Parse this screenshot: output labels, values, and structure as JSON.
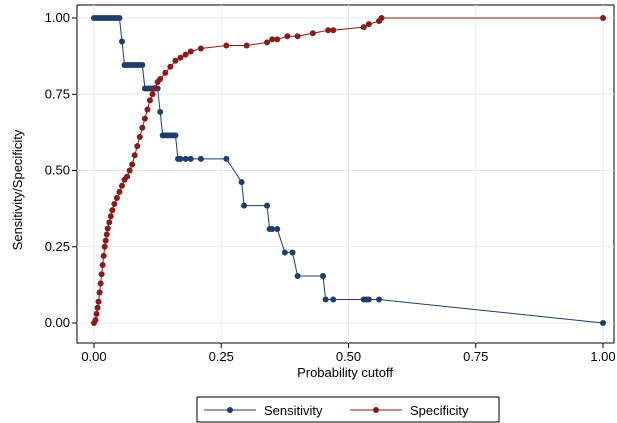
{
  "chart_data": {
    "type": "line",
    "xlabel": "Probability cutoff",
    "ylabel": "Sensitivity/Specificity",
    "xlim": [
      0,
      1
    ],
    "ylim": [
      0,
      1
    ],
    "x_ticks": [
      "0.00",
      "0.25",
      "0.50",
      "0.75",
      "1.00"
    ],
    "y_ticks": [
      "0.00",
      "0.25",
      "0.50",
      "0.75",
      "1.00"
    ],
    "grid": true,
    "legend_position": "bottom",
    "series": [
      {
        "name": "Sensitivity",
        "color": "#1f3d6e",
        "points": [
          [
            0.0,
            1.0
          ],
          [
            0.005,
            1.0
          ],
          [
            0.01,
            1.0
          ],
          [
            0.015,
            1.0
          ],
          [
            0.02,
            1.0
          ],
          [
            0.025,
            1.0
          ],
          [
            0.03,
            1.0
          ],
          [
            0.035,
            1.0
          ],
          [
            0.04,
            1.0
          ],
          [
            0.045,
            1.0
          ],
          [
            0.05,
            1.0
          ],
          [
            0.055,
            0.923
          ],
          [
            0.06,
            0.846
          ],
          [
            0.065,
            0.846
          ],
          [
            0.07,
            0.846
          ],
          [
            0.075,
            0.846
          ],
          [
            0.08,
            0.846
          ],
          [
            0.085,
            0.846
          ],
          [
            0.09,
            0.846
          ],
          [
            0.095,
            0.846
          ],
          [
            0.1,
            0.769
          ],
          [
            0.105,
            0.769
          ],
          [
            0.11,
            0.769
          ],
          [
            0.115,
            0.769
          ],
          [
            0.12,
            0.769
          ],
          [
            0.125,
            0.769
          ],
          [
            0.13,
            0.692
          ],
          [
            0.135,
            0.615
          ],
          [
            0.14,
            0.615
          ],
          [
            0.145,
            0.615
          ],
          [
            0.15,
            0.615
          ],
          [
            0.155,
            0.615
          ],
          [
            0.16,
            0.615
          ],
          [
            0.165,
            0.538
          ],
          [
            0.17,
            0.538
          ],
          [
            0.18,
            0.538
          ],
          [
            0.19,
            0.538
          ],
          [
            0.21,
            0.538
          ],
          [
            0.26,
            0.538
          ],
          [
            0.29,
            0.462
          ],
          [
            0.295,
            0.385
          ],
          [
            0.34,
            0.385
          ],
          [
            0.345,
            0.308
          ],
          [
            0.35,
            0.308
          ],
          [
            0.36,
            0.308
          ],
          [
            0.375,
            0.231
          ],
          [
            0.39,
            0.231
          ],
          [
            0.4,
            0.154
          ],
          [
            0.45,
            0.154
          ],
          [
            0.455,
            0.077
          ],
          [
            0.47,
            0.077
          ],
          [
            0.53,
            0.077
          ],
          [
            0.535,
            0.077
          ],
          [
            0.54,
            0.077
          ],
          [
            0.56,
            0.077
          ],
          [
            1.0,
            0.0
          ]
        ]
      },
      {
        "name": "Specificity",
        "color": "#8b1a1a",
        "points": [
          [
            0.0,
            0.0
          ],
          [
            0.003,
            0.01
          ],
          [
            0.005,
            0.03
          ],
          [
            0.007,
            0.05
          ],
          [
            0.009,
            0.07
          ],
          [
            0.011,
            0.1
          ],
          [
            0.013,
            0.13
          ],
          [
            0.015,
            0.16
          ],
          [
            0.017,
            0.19
          ],
          [
            0.019,
            0.22
          ],
          [
            0.021,
            0.25
          ],
          [
            0.023,
            0.27
          ],
          [
            0.025,
            0.29
          ],
          [
            0.027,
            0.31
          ],
          [
            0.03,
            0.33
          ],
          [
            0.033,
            0.35
          ],
          [
            0.036,
            0.37
          ],
          [
            0.04,
            0.39
          ],
          [
            0.045,
            0.41
          ],
          [
            0.05,
            0.43
          ],
          [
            0.055,
            0.45
          ],
          [
            0.06,
            0.47
          ],
          [
            0.065,
            0.48
          ],
          [
            0.07,
            0.5
          ],
          [
            0.075,
            0.52
          ],
          [
            0.08,
            0.55
          ],
          [
            0.085,
            0.58
          ],
          [
            0.09,
            0.61
          ],
          [
            0.095,
            0.64
          ],
          [
            0.1,
            0.67
          ],
          [
            0.105,
            0.7
          ],
          [
            0.11,
            0.73
          ],
          [
            0.115,
            0.75
          ],
          [
            0.12,
            0.77
          ],
          [
            0.125,
            0.79
          ],
          [
            0.13,
            0.8
          ],
          [
            0.14,
            0.82
          ],
          [
            0.15,
            0.84
          ],
          [
            0.16,
            0.86
          ],
          [
            0.17,
            0.87
          ],
          [
            0.18,
            0.88
          ],
          [
            0.19,
            0.89
          ],
          [
            0.21,
            0.9
          ],
          [
            0.26,
            0.91
          ],
          [
            0.3,
            0.91
          ],
          [
            0.34,
            0.92
          ],
          [
            0.35,
            0.93
          ],
          [
            0.36,
            0.93
          ],
          [
            0.38,
            0.94
          ],
          [
            0.4,
            0.94
          ],
          [
            0.43,
            0.95
          ],
          [
            0.46,
            0.96
          ],
          [
            0.47,
            0.96
          ],
          [
            0.53,
            0.97
          ],
          [
            0.54,
            0.98
          ],
          [
            0.56,
            0.99
          ],
          [
            0.565,
            1.0
          ],
          [
            1.0,
            1.0
          ]
        ]
      }
    ]
  }
}
